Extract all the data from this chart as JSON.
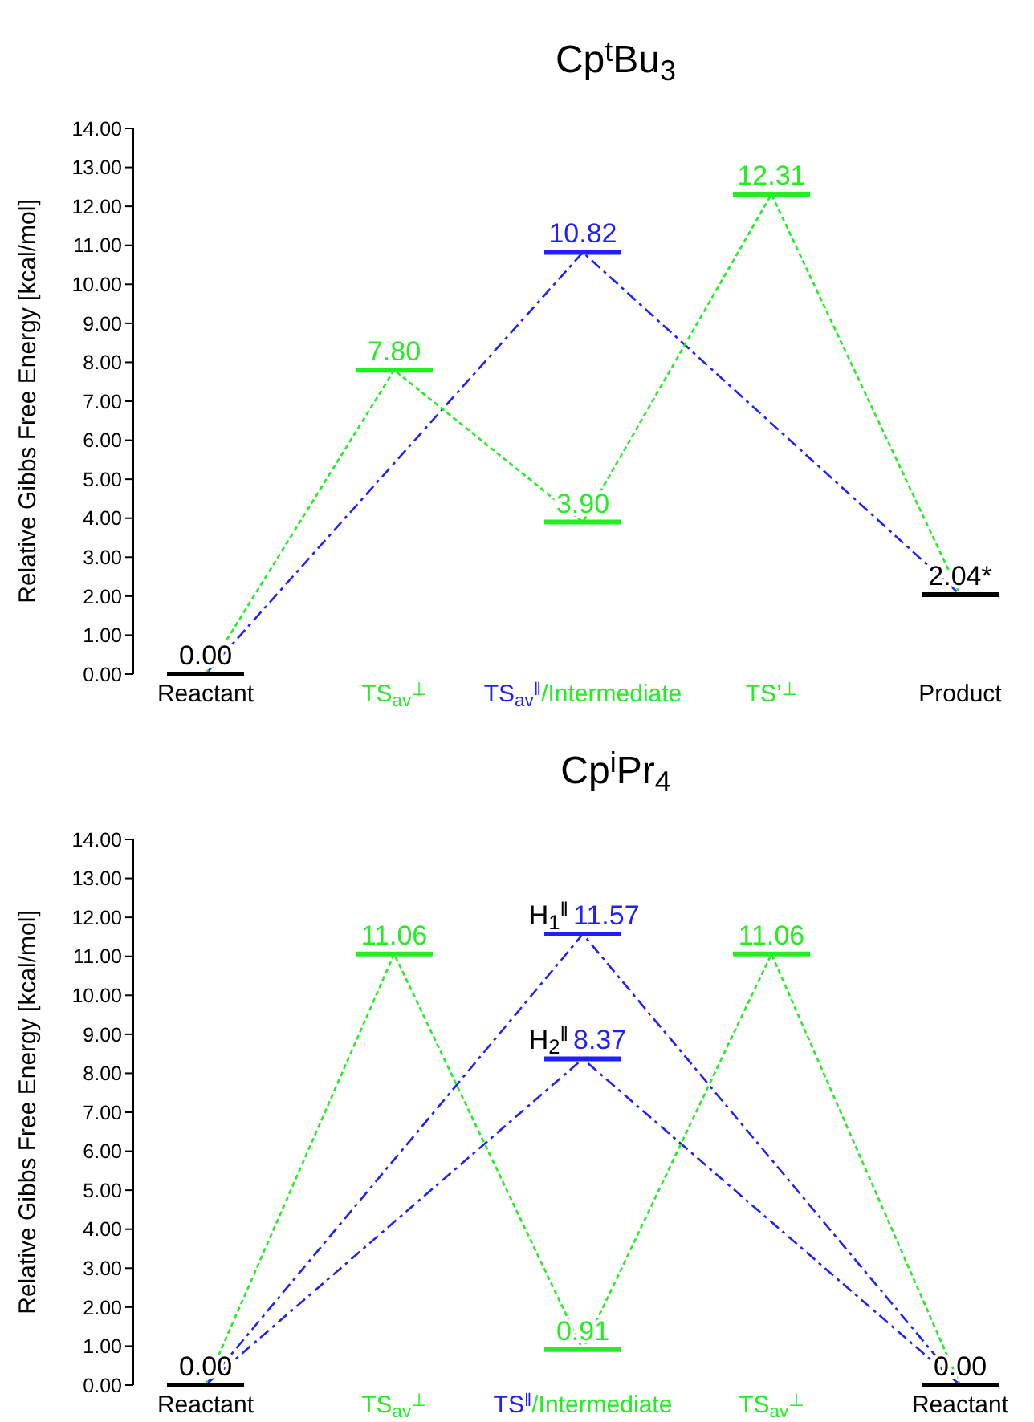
{
  "chart_data": [
    {
      "type": "line",
      "title": "Cp$^{t}$Bu$_{3}$",
      "ylabel": "Relative Gibbs Free Energy [kcal/mol]",
      "categories": [
        "Reactant",
        "TS$_{av}$$^{⊥}$",
        "TS$_{av}$$^{‖}$/Intermediate",
        "TS’$^{⊥}$",
        "Product"
      ],
      "ylim": [
        0,
        14
      ],
      "yticks": [
        {
          "value": 0,
          "label": "0.00"
        },
        {
          "value": 1,
          "label": "1.00"
        },
        {
          "value": 2,
          "label": "2.00"
        },
        {
          "value": 3,
          "label": "3.00"
        },
        {
          "value": 4,
          "label": "4.00"
        },
        {
          "value": 5,
          "label": "5.00"
        },
        {
          "value": 6,
          "label": "6.00"
        },
        {
          "value": 7,
          "label": "7.00"
        },
        {
          "value": 8,
          "label": "8.00"
        },
        {
          "value": 9,
          "label": "9.00"
        },
        {
          "value": 10,
          "label": "10.00"
        },
        {
          "value": 11,
          "label": "11.00"
        },
        {
          "value": 12,
          "label": "12.00"
        },
        {
          "value": 13,
          "label": "13.00"
        },
        {
          "value": 14,
          "label": "14.00"
        }
      ],
      "grid": false,
      "marker": "none",
      "series": [
        {
          "color": "#1f1fff",
          "line_style": "dashed",
          "values": [
            0,
            null,
            10.82,
            null,
            2.04
          ],
          "colors": [
            "#000000",
            null,
            "#1f1fff",
            null,
            "#000000"
          ],
          "value_labels": [
            null,
            null,
            "10.82",
            null,
            null
          ]
        },
        {
          "color": "#22ee22",
          "line_style": "dotted",
          "values": [
            0,
            7.8,
            3.9,
            12.31,
            2.04
          ],
          "colors": [
            "#000000",
            "#22ee22",
            "#22ee22",
            "#22ee22",
            "#000000"
          ],
          "value_labels": [
            "0.00",
            "7.80",
            "3.90",
            "12.31",
            "2.04*"
          ]
        }
      ]
    },
    {
      "type": "line",
      "title": "Cp$^{i}$Pr$_{4}$",
      "ylabel": "Relative Gibbs Free Energy [kcal/mol]",
      "categories": [
        "Reactant",
        "TS$_{av}$$^{⊥}$",
        "TS$^{‖}$/Intermediate",
        "TS$_{av}$$^{⊥}$",
        "Reactant"
      ],
      "ylim": [
        0,
        14
      ],
      "yticks": [
        {
          "value": 0,
          "label": "0.00"
        },
        {
          "value": 1,
          "label": "1.00"
        },
        {
          "value": 2,
          "label": "2.00"
        },
        {
          "value": 3,
          "label": "3.00"
        },
        {
          "value": 4,
          "label": "4.00"
        },
        {
          "value": 5,
          "label": "5.00"
        },
        {
          "value": 6,
          "label": "6.00"
        },
        {
          "value": 7,
          "label": "7.00"
        },
        {
          "value": 8,
          "label": "8.00"
        },
        {
          "value": 9,
          "label": "9.00"
        },
        {
          "value": 10,
          "label": "10.00"
        },
        {
          "value": 11,
          "label": "11.00"
        },
        {
          "value": 12,
          "label": "12.00"
        },
        {
          "value": 13,
          "label": "13.00"
        },
        {
          "value": 14,
          "label": "14.00"
        }
      ],
      "grid": false,
      "marker": "none",
      "annotations": [
        {
          "text": "H$_{1}$$^{‖}$",
          "x": "TS$^{‖}$/Intermediate",
          "y": 11.57
        },
        {
          "text": "H$_{2}$$^{‖}$",
          "x": "TS$^{‖}$/Intermediate",
          "y": 8.37
        }
      ],
      "series": [
        {
          "color": "#1f1fff",
          "line_style": "dashed",
          "values": [
            0,
            null,
            11.57,
            null,
            0
          ],
          "colors": [
            "#000000",
            null,
            "#1f1fff",
            null,
            "#000000"
          ],
          "value_labels": [
            null,
            null,
            "11.57",
            null,
            null
          ]
        },
        {
          "color": "#1f1fff",
          "line_style": "dashed",
          "values": [
            0,
            null,
            8.37,
            null,
            0
          ],
          "colors": [
            "#000000",
            null,
            "#1f1fff",
            null,
            "#000000"
          ],
          "value_labels": [
            null,
            null,
            "8.37",
            null,
            null
          ]
        },
        {
          "color": "#22ee22",
          "line_style": "dotted",
          "values": [
            0,
            11.06,
            0.91,
            11.06,
            0
          ],
          "colors": [
            "#000000",
            "#22ee22",
            "#22ee22",
            "#22ee22",
            "#000000"
          ],
          "value_labels": [
            "0.00",
            "11.06",
            "0.91",
            "11.06",
            "0.00"
          ]
        }
      ]
    }
  ]
}
